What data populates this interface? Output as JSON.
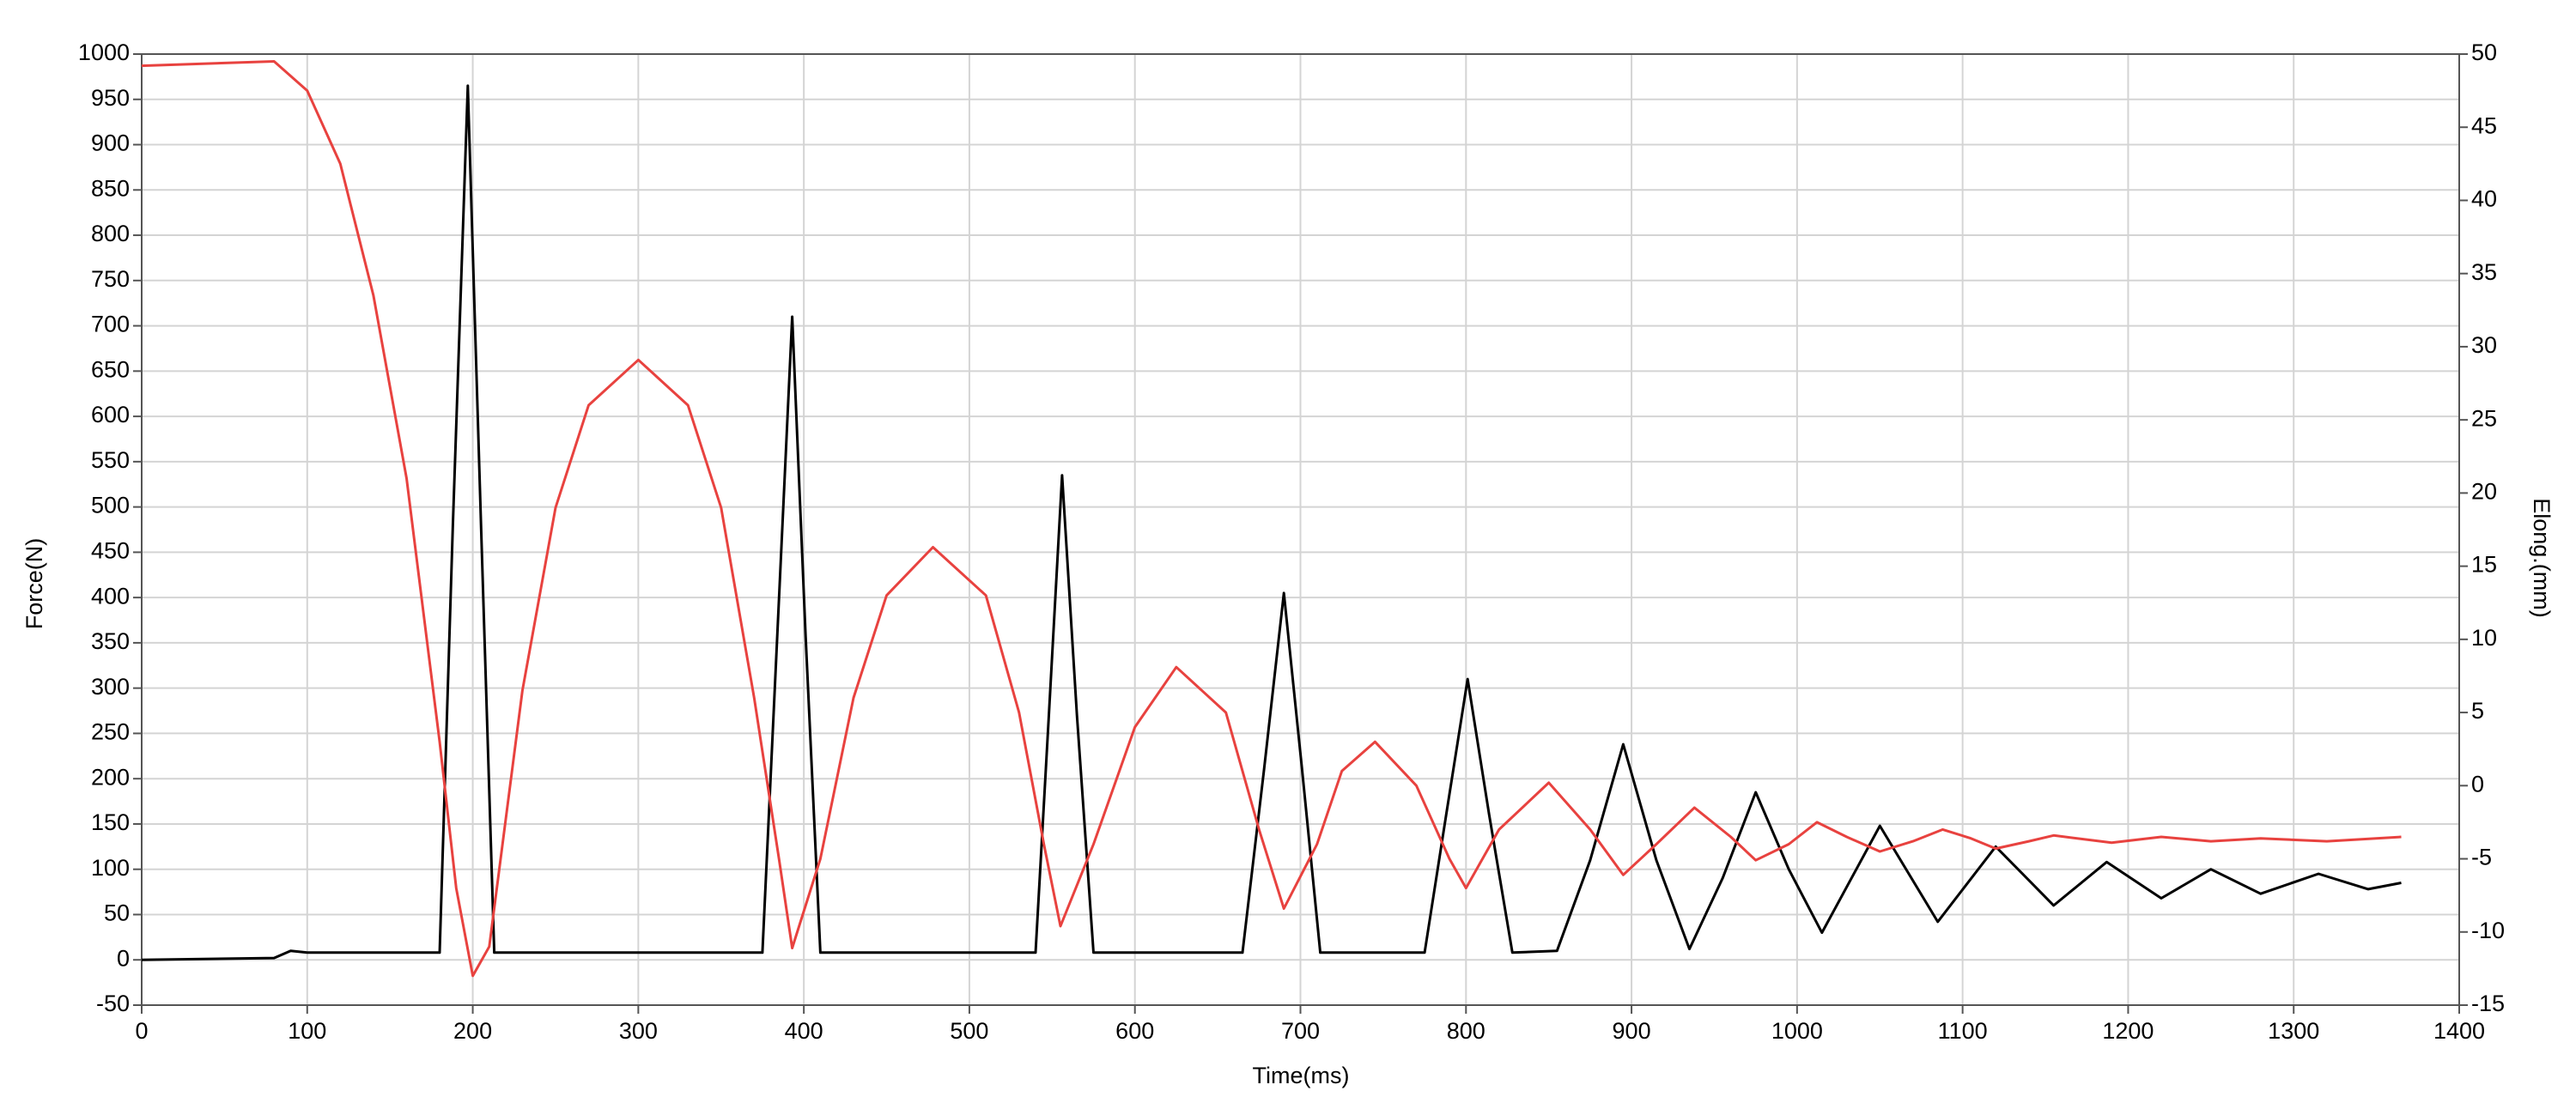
{
  "chart_data": {
    "type": "line",
    "x_label": "Time(ms)",
    "y_label": "Force(N)",
    "y2_label": "Elong.(mm)",
    "xlim": [
      0,
      1400
    ],
    "xticks": [
      0,
      100,
      200,
      300,
      400,
      500,
      600,
      700,
      800,
      900,
      1000,
      1100,
      1200,
      1300,
      1400
    ],
    "ylim": [
      -50,
      1000
    ],
    "yticks": [
      -50,
      0,
      50,
      100,
      150,
      200,
      250,
      300,
      350,
      400,
      450,
      500,
      550,
      600,
      650,
      700,
      750,
      800,
      850,
      900,
      950,
      1000
    ],
    "y2lim": [
      -15,
      50
    ],
    "y2ticks": [
      -15,
      -10,
      -5,
      0,
      5,
      10,
      15,
      20,
      25,
      30,
      35,
      40,
      45,
      50
    ],
    "grid": true,
    "series": [
      {
        "name": "Force",
        "color": "#000000",
        "x": [
          0,
          80,
          90,
          100,
          180,
          188,
          197,
          205,
          213,
          375,
          384,
          393,
          401,
          410,
          540,
          548,
          556,
          565,
          575,
          665,
          678,
          690,
          701,
          712,
          775,
          788,
          801,
          814,
          828,
          855,
          875,
          895,
          915,
          935,
          955,
          975,
          995,
          1015,
          1050,
          1085,
          1120,
          1155,
          1187,
          1220,
          1250,
          1280,
          1315,
          1345,
          1365
        ],
        "values": [
          0,
          2,
          10,
          8,
          8,
          480,
          965,
          480,
          8,
          8,
          360,
          710,
          360,
          8,
          8,
          270,
          535,
          270,
          8,
          8,
          210,
          405,
          210,
          8,
          8,
          160,
          310,
          160,
          8,
          10,
          110,
          238,
          110,
          12,
          90,
          185,
          100,
          30,
          148,
          42,
          125,
          60,
          108,
          68,
          100,
          73,
          95,
          78,
          85
        ]
      },
      {
        "name": "Elong",
        "color": "#e8423f",
        "axis": "y2",
        "x": [
          0,
          80,
          100,
          120,
          140,
          160,
          180,
          190,
          200,
          210,
          230,
          250,
          270,
          300,
          330,
          350,
          370,
          385,
          393,
          410,
          430,
          450,
          478,
          510,
          530,
          545,
          555,
          575,
          600,
          625,
          655,
          675,
          690,
          710,
          725,
          745,
          770,
          790,
          800,
          820,
          850,
          875,
          895,
          915,
          938,
          960,
          975,
          995,
          1012,
          1030,
          1050,
          1070,
          1088,
          1105,
          1120,
          1140,
          1155,
          1190,
          1220,
          1250,
          1280,
          1320,
          1365
        ],
        "values": [
          49.2,
          49.5,
          47.5,
          42.5,
          33.5,
          21,
          3,
          -7,
          -13,
          -11,
          6.5,
          19,
          26,
          29.1,
          26,
          19,
          6,
          -5,
          -11.1,
          -5,
          6,
          13,
          16.3,
          13,
          5,
          -4,
          -9.6,
          -4,
          4,
          8.1,
          5,
          -3,
          -8.4,
          -4,
          1,
          3,
          0,
          -5,
          -7,
          -3,
          0.2,
          -3,
          -6.1,
          -4,
          -1.5,
          -3.5,
          -5.1,
          -4,
          -2.5,
          -3.5,
          -4.5,
          -3.8,
          -3,
          -3.6,
          -4.3,
          -3.8,
          -3.4,
          -3.9,
          -3.5,
          -3.8,
          -3.6,
          -3.8,
          -3.5
        ]
      }
    ]
  }
}
